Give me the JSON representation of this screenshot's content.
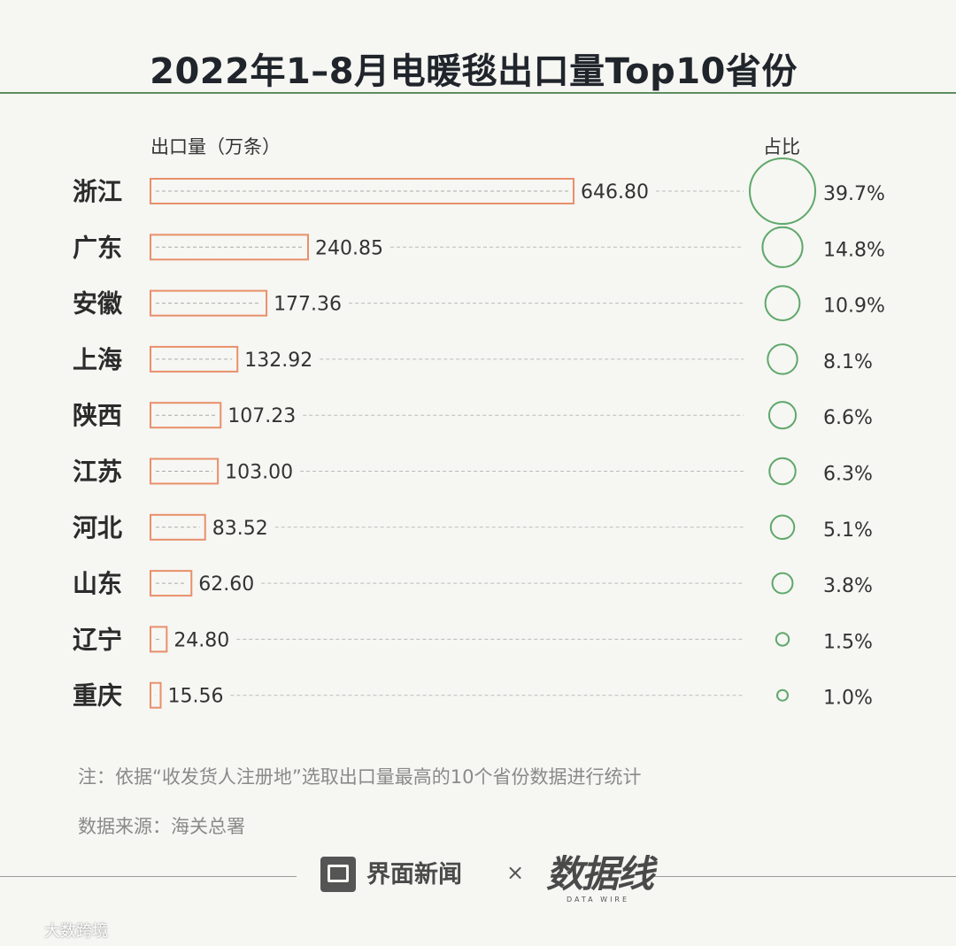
{
  "title": "2022年1–8月电暖毯出口量Top10省份",
  "y_unit_label": "出口量（万条）",
  "share_label": "占比",
  "note": "注：依据“收发货人注册地”选取出口量最高的10个省份数据进行统计",
  "source": "数据来源：海关总署",
  "footer": {
    "brand1": "界面新闻",
    "cross": "×",
    "brand2": "数据线",
    "brand2_sub": "DATA WIRE"
  },
  "watermark": "大数跨境",
  "colors": {
    "bar": "#e8906a",
    "bubble": "#5fa86a",
    "rule": "#5b8e5f"
  },
  "chart_data": {
    "type": "bar",
    "orientation": "horizontal",
    "title": "2022年1–8月电暖毯出口量Top10省份",
    "xlabel": "出口量（万条）",
    "categories": [
      "浙江",
      "广东",
      "安徽",
      "上海",
      "陕西",
      "江苏",
      "河北",
      "山东",
      "辽宁",
      "重庆"
    ],
    "values": [
      646.8,
      240.85,
      177.36,
      132.92,
      107.23,
      103.0,
      83.52,
      62.6,
      24.8,
      15.56
    ],
    "value_labels": [
      "646.80",
      "240.85",
      "177.36",
      "132.92",
      "107.23",
      "103.00",
      "83.52",
      "62.60",
      "24.80",
      "15.56"
    ],
    "share": [
      39.7,
      14.8,
      10.9,
      8.1,
      6.6,
      6.3,
      5.1,
      3.8,
      1.5,
      1.0
    ],
    "share_labels": [
      "39.7%",
      "14.8%",
      "10.9%",
      "8.1%",
      "6.6%",
      "6.3%",
      "5.1%",
      "3.8%",
      "1.5%",
      "1.0%"
    ],
    "xlim": [
      0,
      646.8
    ]
  }
}
